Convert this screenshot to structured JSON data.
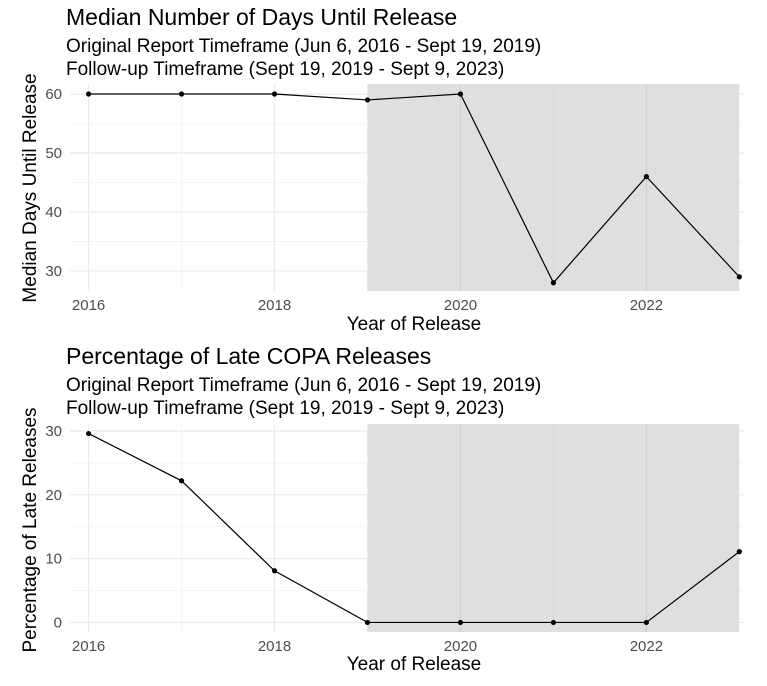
{
  "chart_data": [
    {
      "type": "line",
      "title": "Median Number of Days Until Release",
      "subtitle_lines": [
        "Original Report Timeframe (Jun 6, 2016 - Sept 19, 2019)",
        "Follow-up Timeframe (Sept 19, 2019 - Sept 9, 2023)"
      ],
      "xlabel": "Year of Release",
      "ylabel": "Median Days Until Release",
      "x": [
        2016,
        2017,
        2018,
        2019,
        2020,
        2021,
        2022,
        2023
      ],
      "series": [
        {
          "values": [
            60,
            60,
            60,
            59,
            60,
            28,
            46,
            29
          ]
        }
      ],
      "xlim": [
        2015.8,
        2023.05
      ],
      "ylim": [
        26.6,
        61.7
      ],
      "x_ticks": [
        2016,
        2018,
        2020,
        2022
      ],
      "x_tick_labels": [
        "2016",
        "2018",
        "2020",
        "2022"
      ],
      "y_ticks": [
        30,
        40,
        50,
        60
      ],
      "y_tick_labels": [
        "30",
        "40",
        "50",
        "60"
      ],
      "shaded_region": [
        2019,
        2023
      ],
      "grid": true,
      "colors": {
        "line": "#000000",
        "shade": "#dcdcdc",
        "grid": "#ebebeb"
      }
    },
    {
      "type": "line",
      "title": "Percentage of Late COPA Releases",
      "subtitle_lines": [
        "Original Report Timeframe (Jun 6, 2016 - Sept 19, 2019)",
        "Follow-up Timeframe (Sept 19, 2019 - Sept 9, 2023)"
      ],
      "xlabel": "Year of Release",
      "ylabel": "Percentage of Late Releases",
      "x": [
        2016,
        2017,
        2018,
        2019,
        2020,
        2021,
        2022,
        2023
      ],
      "series": [
        {
          "values": [
            29.6,
            22.2,
            8.1,
            0,
            0,
            0,
            0,
            11.1
          ]
        }
      ],
      "xlim": [
        2015.8,
        2023.05
      ],
      "ylim": [
        -1.5,
        31.1
      ],
      "x_ticks": [
        2016,
        2018,
        2020,
        2022
      ],
      "x_tick_labels": [
        "2016",
        "2018",
        "2020",
        "2022"
      ],
      "y_ticks": [
        0,
        10,
        20,
        30
      ],
      "y_tick_labels": [
        "0",
        "10",
        "20",
        "30"
      ],
      "shaded_region": [
        2019,
        2023
      ],
      "grid": true,
      "colors": {
        "line": "#000000",
        "shade": "#dcdcdc",
        "grid": "#ebebeb"
      }
    }
  ]
}
